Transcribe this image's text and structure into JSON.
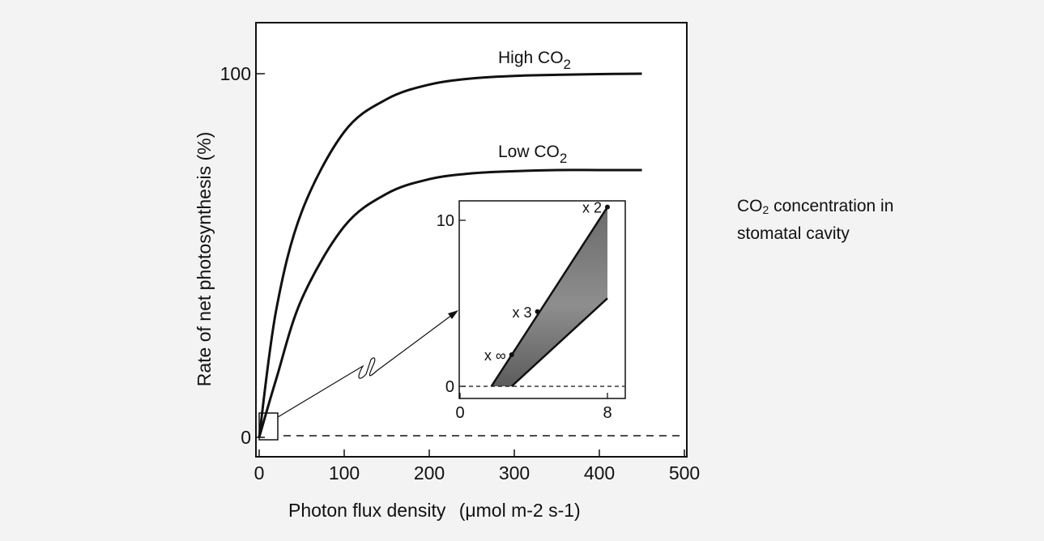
{
  "chart_data": [
    {
      "type": "line",
      "ylabel": "Rate of net photosynthesis (%)",
      "xlabel": {
        "main": "Photon flux density",
        "units": "(μmol m-2 s-1)"
      },
      "xlim": [
        0,
        500
      ],
      "ylim": [
        0,
        100
      ],
      "x_ticks": [
        "0",
        "100",
        "200",
        "300",
        "400",
        "500"
      ],
      "y_ticks": [
        "0",
        "100"
      ],
      "series": [
        {
          "name": "High CO2",
          "label_main": "High CO",
          "label_sub": "2",
          "x": [
            0,
            20,
            50,
            100,
            150,
            200,
            250,
            300,
            350,
            400,
            450
          ],
          "values": [
            0,
            35,
            62,
            84,
            93,
            97,
            98.7,
            99.4,
            99.7,
            99.9,
            100
          ]
        },
        {
          "name": "Low CO2",
          "label_main": "Low CO",
          "label_sub": "2",
          "x": [
            0,
            20,
            50,
            100,
            150,
            200,
            250,
            300,
            350,
            400,
            450
          ],
          "values": [
            0,
            16,
            38,
            58,
            67,
            71,
            72.6,
            73.2,
            73.5,
            73.5,
            73.5
          ]
        }
      ],
      "zero_line": {
        "y": 0,
        "style": "dashed"
      }
    },
    {
      "type": "area",
      "inset": true,
      "xlim": [
        0,
        9
      ],
      "ylim": [
        0,
        10
      ],
      "x_ticks": [
        "0",
        "8"
      ],
      "y_ticks": [
        "0",
        "10"
      ],
      "upper_line": {
        "x": [
          1.7,
          8
        ],
        "values": [
          0,
          10.8
        ]
      },
      "lower_line": {
        "x": [
          2.8,
          8
        ],
        "values": [
          0,
          5.3
        ]
      },
      "shaded_region": {
        "x": [
          1.7,
          2.8,
          8,
          8
        ],
        "values": [
          0,
          0,
          5.3,
          10.8
        ]
      },
      "annotations": [
        {
          "label": "x 2",
          "x": 8,
          "y": 10.8
        },
        {
          "label": "x 3",
          "x": 4.2,
          "y": 4.5
        },
        {
          "label": "x ∞",
          "x": 2.8,
          "y": 1.9
        }
      ],
      "zero_line": {
        "y": 0,
        "style": "dashed"
      }
    }
  ],
  "side_note": {
    "prefix": "CO",
    "sub": "2",
    "suffix": " concentration in",
    "line2": "stomatal cavity"
  }
}
